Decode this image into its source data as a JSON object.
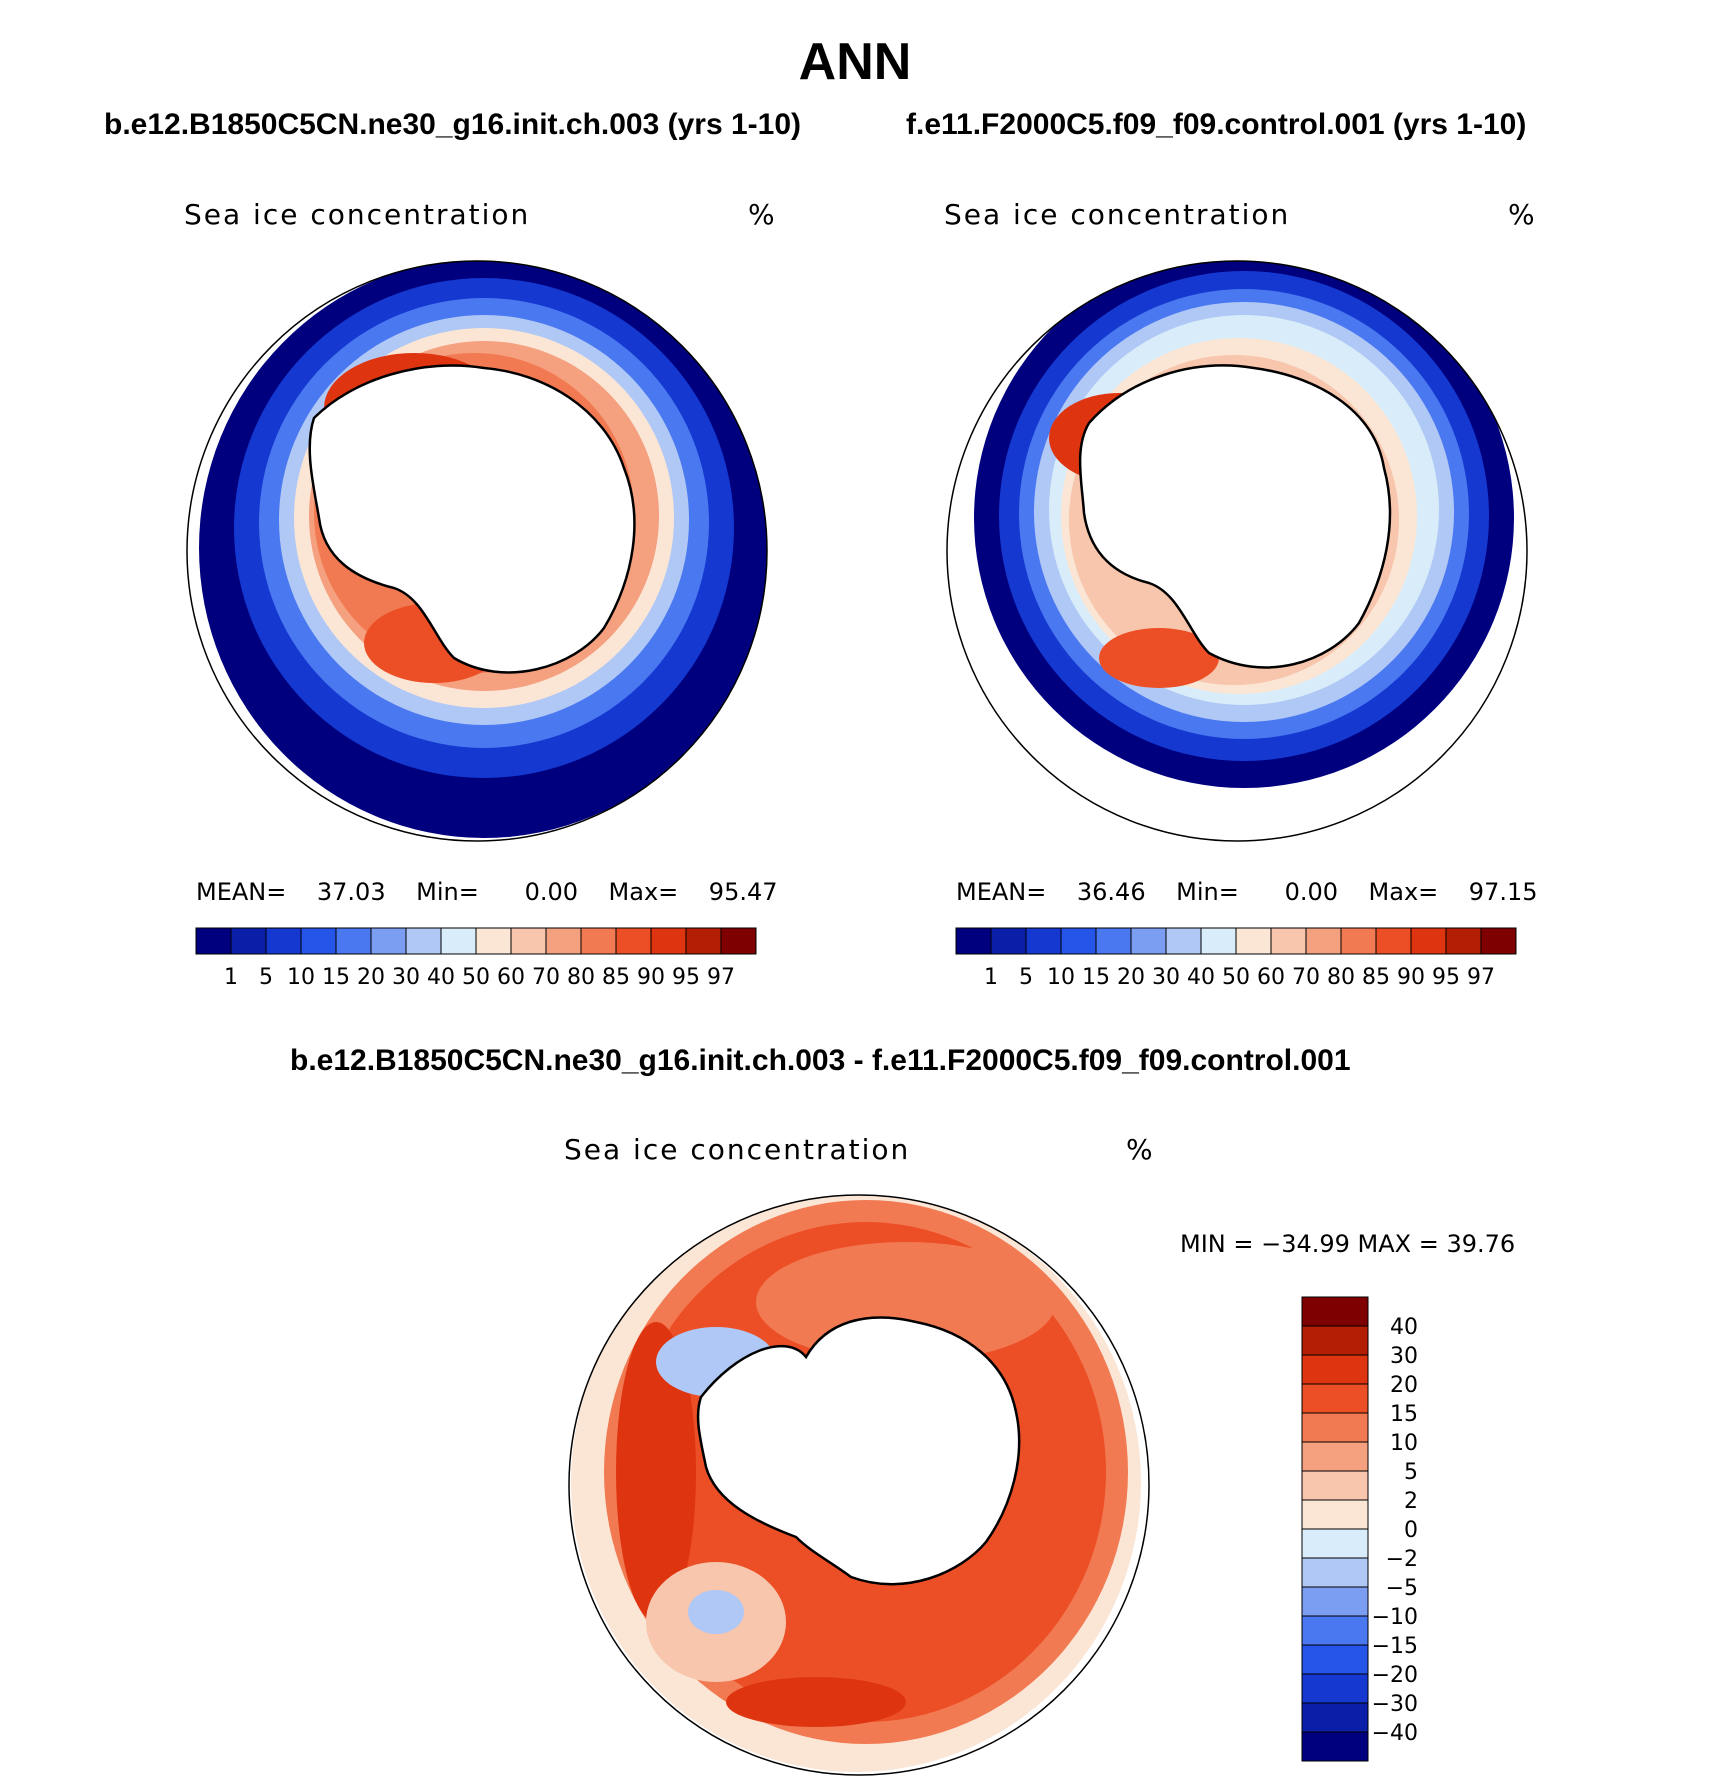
{
  "figure": {
    "season": "ANN",
    "case1_title": "b.e12.B1850C5CN.ne30_g16.init.ch.003 (yrs 1-10)",
    "case2_title": "f.e11.F2000C5.f09_f09.control.001 (yrs 1-10)",
    "diff_title": "b.e12.B1850C5CN.ne30_g16.init.ch.003 - f.e11.F2000C5.f09_f09.control.001"
  },
  "panels": [
    {
      "label": "Sea ice concentration",
      "units": "%",
      "mean_label": "MEAN=",
      "mean": "37.03",
      "min_label": "Min=",
      "min": "0.00",
      "max_label": "Max=",
      "max": "95.47"
    },
    {
      "label": "Sea ice concentration",
      "units": "%",
      "mean_label": "MEAN=",
      "mean": "36.46",
      "min_label": "Min=",
      "min": "0.00",
      "max_label": "Max=",
      "max": "97.15"
    },
    {
      "label": "Sea ice concentration",
      "units": "%",
      "minmax_text": "MIN = −34.99 MAX =   39.76"
    }
  ],
  "colorbar_abs": {
    "labels": [
      "1",
      "5",
      "10",
      "15",
      "20",
      "30",
      "40",
      "50",
      "60",
      "70",
      "80",
      "85",
      "90",
      "95",
      "97"
    ],
    "colors": [
      "#00007f",
      "#0a1ea8",
      "#1438d0",
      "#2455e8",
      "#4a78f0",
      "#7c9ef2",
      "#b0c8f5",
      "#d8ecf9",
      "#fbe6d6",
      "#f8c5ad",
      "#f5a07f",
      "#f27a52",
      "#ec4f25",
      "#de3410",
      "#b31e05",
      "#7f0000"
    ]
  },
  "colorbar_diff": {
    "labels": [
      "40",
      "30",
      "20",
      "15",
      "10",
      "5",
      "2",
      "0",
      "−2",
      "−5",
      "−10",
      "−15",
      "−20",
      "−30",
      "−40"
    ],
    "colors": [
      "#7f0000",
      "#b31e05",
      "#de3410",
      "#ec4f25",
      "#f27a52",
      "#f5a07f",
      "#f8c5ad",
      "#fbe6d6",
      "#d8ecf9",
      "#b0c8f5",
      "#7c9ef2",
      "#4a78f0",
      "#2455e8",
      "#1438d0",
      "#0a1ea8",
      "#00007f"
    ]
  }
}
